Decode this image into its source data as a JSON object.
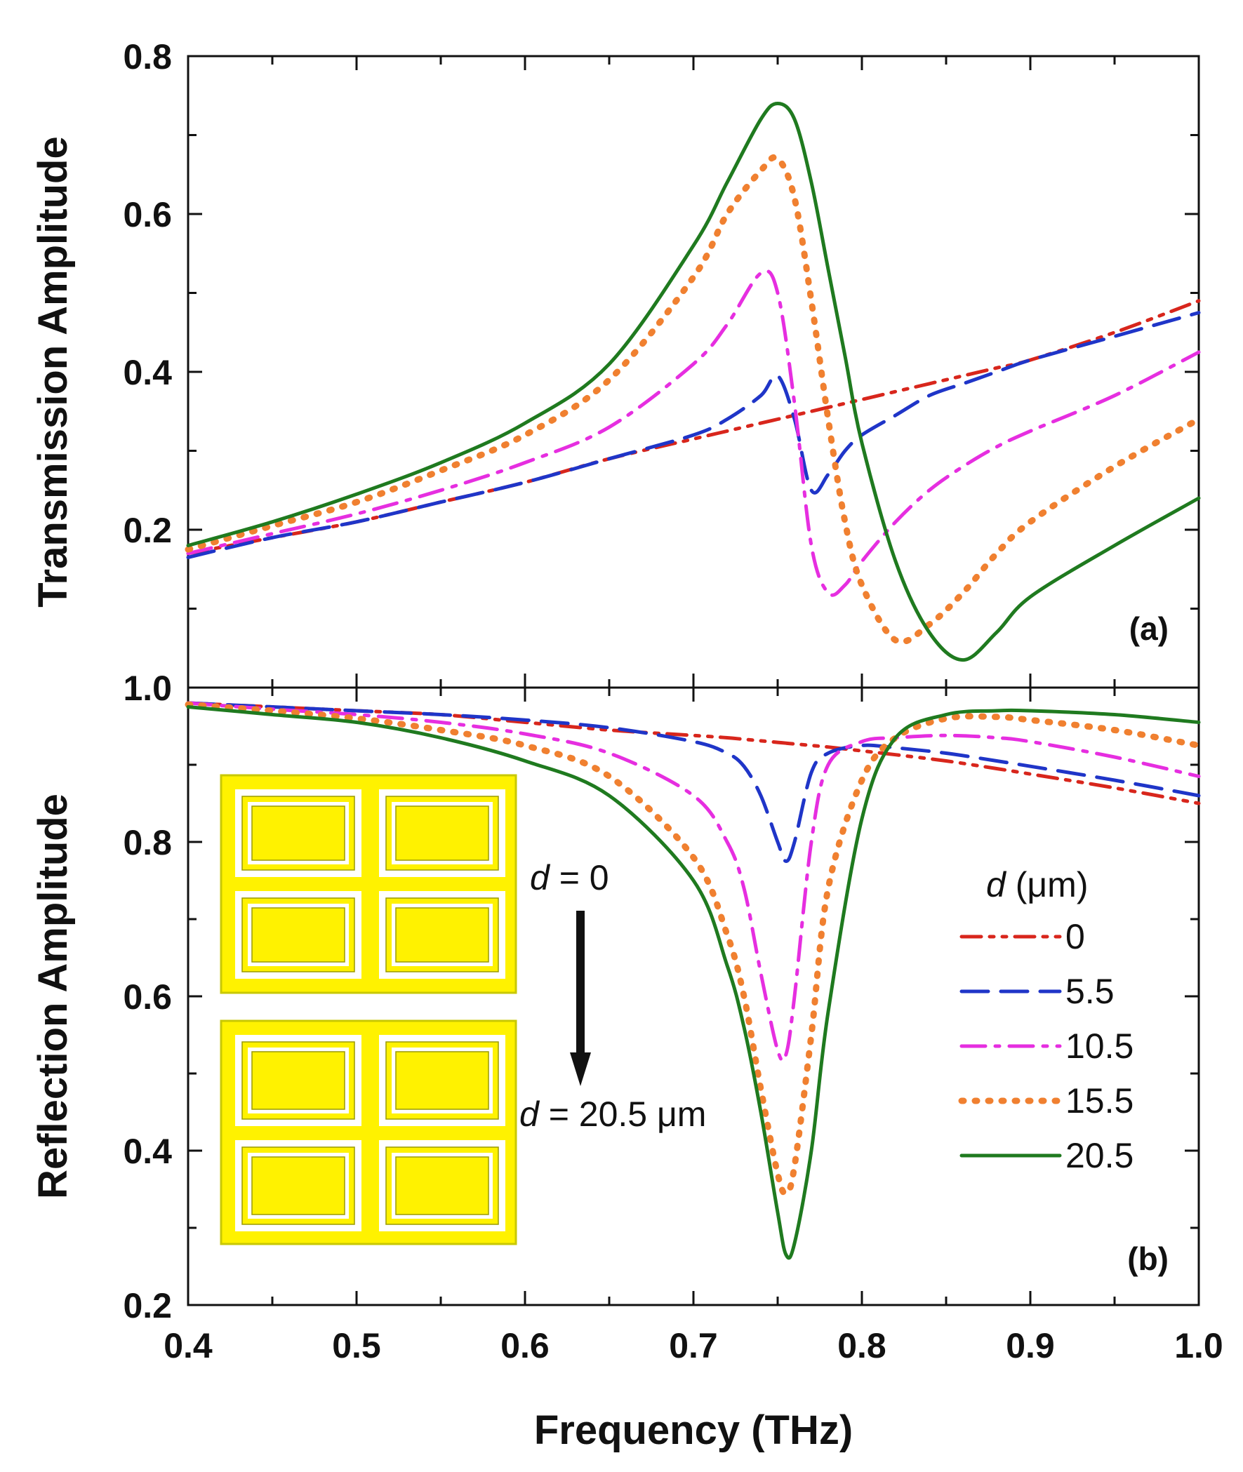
{
  "chart_data": [
    {
      "type": "line",
      "panel": "(a)",
      "ylabel": "Transmission Amplitude",
      "xlabel": "",
      "xlim": [
        0.4,
        1.0
      ],
      "ylim": [
        0.0,
        0.8
      ],
      "yticks": [
        "0.2",
        "0.4",
        "0.6",
        "0.8"
      ],
      "yticks_values": [
        0.2,
        0.4,
        0.6,
        0.8
      ],
      "x": [
        0.4,
        0.45,
        0.5,
        0.55,
        0.6,
        0.65,
        0.7,
        0.72,
        0.74,
        0.75,
        0.76,
        0.77,
        0.78,
        0.79,
        0.8,
        0.82,
        0.84,
        0.86,
        0.88,
        0.9,
        0.95,
        1.0
      ],
      "series": [
        {
          "name": "0",
          "color": "#d8261c",
          "dash": "dashdotdot",
          "values": [
            0.17,
            0.19,
            0.21,
            0.235,
            0.26,
            0.29,
            0.315,
            0.325,
            0.335,
            0.34,
            0.345,
            0.35,
            0.355,
            0.36,
            0.365,
            0.375,
            0.385,
            0.395,
            0.405,
            0.415,
            0.45,
            0.49
          ]
        },
        {
          "name": "5.5",
          "color": "#1f35c8",
          "dash": "dash",
          "values": [
            0.165,
            0.19,
            0.21,
            0.235,
            0.26,
            0.29,
            0.32,
            0.34,
            0.37,
            0.395,
            0.34,
            0.25,
            0.27,
            0.3,
            0.32,
            0.345,
            0.37,
            0.385,
            0.4,
            0.415,
            0.445,
            0.475
          ]
        },
        {
          "name": "10.5",
          "color": "#e62ee0",
          "dash": "dashdot",
          "values": [
            0.17,
            0.195,
            0.22,
            0.25,
            0.285,
            0.33,
            0.41,
            0.46,
            0.525,
            0.5,
            0.36,
            0.18,
            0.12,
            0.13,
            0.16,
            0.21,
            0.25,
            0.28,
            0.305,
            0.325,
            0.37,
            0.425
          ]
        },
        {
          "name": "15.5",
          "color": "#f08030",
          "dash": "dot",
          "values": [
            0.175,
            0.205,
            0.235,
            0.275,
            0.32,
            0.39,
            0.52,
            0.6,
            0.655,
            0.67,
            0.62,
            0.49,
            0.34,
            0.21,
            0.13,
            0.06,
            0.08,
            0.12,
            0.17,
            0.21,
            0.28,
            0.34
          ]
        },
        {
          "name": "20.5",
          "color": "#1f7a1f",
          "dash": "solid",
          "values": [
            0.18,
            0.21,
            0.245,
            0.285,
            0.335,
            0.41,
            0.56,
            0.64,
            0.72,
            0.74,
            0.72,
            0.64,
            0.53,
            0.42,
            0.31,
            0.16,
            0.07,
            0.035,
            0.07,
            0.115,
            0.18,
            0.24
          ]
        }
      ]
    },
    {
      "type": "line",
      "panel": "(b)",
      "ylabel": "Reflection Amplitude",
      "xlabel": "Frequency (THz)",
      "xlim": [
        0.4,
        1.0
      ],
      "ylim": [
        0.2,
        1.0
      ],
      "xticks": [
        "0.4",
        "0.5",
        "0.6",
        "0.7",
        "0.8",
        "0.9",
        "1.0"
      ],
      "xticks_values": [
        0.4,
        0.5,
        0.6,
        0.7,
        0.8,
        0.9,
        1.0
      ],
      "yticks": [
        "0.2",
        "0.4",
        "0.6",
        "0.8",
        "1.0"
      ],
      "yticks_values": [
        0.2,
        0.4,
        0.6,
        0.8,
        1.0
      ],
      "x": [
        0.4,
        0.45,
        0.5,
        0.55,
        0.6,
        0.65,
        0.7,
        0.72,
        0.73,
        0.74,
        0.75,
        0.755,
        0.76,
        0.77,
        0.78,
        0.8,
        0.82,
        0.85,
        0.88,
        0.9,
        0.95,
        1.0
      ],
      "series": [
        {
          "name": "0",
          "color": "#d8261c",
          "dash": "dashdotdot",
          "values": [
            0.98,
            0.975,
            0.97,
            0.965,
            0.955,
            0.945,
            0.938,
            0.935,
            0.933,
            0.931,
            0.929,
            0.928,
            0.927,
            0.925,
            0.923,
            0.918,
            0.913,
            0.905,
            0.895,
            0.888,
            0.87,
            0.85
          ]
        },
        {
          "name": "5.5",
          "color": "#1f35c8",
          "dash": "dash",
          "values": [
            0.98,
            0.975,
            0.97,
            0.965,
            0.958,
            0.948,
            0.93,
            0.915,
            0.898,
            0.86,
            0.8,
            0.775,
            0.8,
            0.89,
            0.915,
            0.925,
            0.922,
            0.915,
            0.905,
            0.898,
            0.88,
            0.86
          ]
        },
        {
          "name": "10.5",
          "color": "#e62ee0",
          "dash": "dashdot",
          "values": [
            0.98,
            0.972,
            0.965,
            0.955,
            0.94,
            0.915,
            0.86,
            0.8,
            0.74,
            0.63,
            0.53,
            0.525,
            0.6,
            0.8,
            0.9,
            0.93,
            0.935,
            0.938,
            0.935,
            0.93,
            0.91,
            0.885
          ]
        },
        {
          "name": "15.5",
          "color": "#f08030",
          "dash": "dot",
          "values": [
            0.978,
            0.97,
            0.96,
            0.945,
            0.925,
            0.885,
            0.78,
            0.68,
            0.6,
            0.48,
            0.37,
            0.345,
            0.38,
            0.55,
            0.74,
            0.88,
            0.935,
            0.96,
            0.962,
            0.958,
            0.945,
            0.925
          ]
        },
        {
          "name": "20.5",
          "color": "#1f7a1f",
          "dash": "solid",
          "values": [
            0.975,
            0.965,
            0.955,
            0.935,
            0.905,
            0.86,
            0.75,
            0.64,
            0.56,
            0.45,
            0.32,
            0.265,
            0.28,
            0.4,
            0.58,
            0.83,
            0.935,
            0.965,
            0.97,
            0.97,
            0.965,
            0.955
          ]
        }
      ]
    }
  ],
  "legend": {
    "title_italic": "d",
    "title_rest": " (μm)",
    "entries": [
      "0",
      "5.5",
      "10.5",
      "15.5",
      "20.5"
    ]
  },
  "annotations": {
    "top_label_italic": "d",
    "top_label_rest": " = 0",
    "bottom_label_italic": "d",
    "bottom_label_rest": " = 20.5 μm"
  },
  "colors": {
    "axis": "#111111",
    "inset_fill": "#fff200",
    "inset_border": "#c8c800",
    "inset_gap": "#ffffff"
  }
}
